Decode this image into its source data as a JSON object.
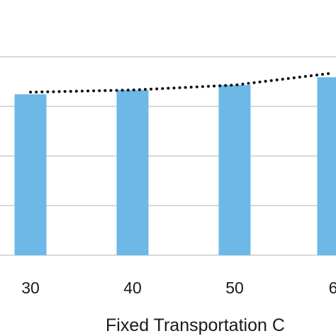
{
  "chart_data": {
    "type": "bar",
    "categories": [
      "30",
      "40",
      "50",
      "6"
    ],
    "series": [
      {
        "values": [
          227,
          233,
          240,
          251
        ]
      }
    ],
    "trendline": {
      "style": "dotted",
      "values": [
        230,
        233,
        240,
        257
      ]
    },
    "xlabel": "Fixed Transportation C",
    "ylim": [
      0,
      330
    ],
    "grid": true,
    "colors": {
      "bar": "#6cb9e8",
      "trend": "#111111",
      "grid": "#d9d9d9",
      "text": "#1a1a1a"
    }
  }
}
